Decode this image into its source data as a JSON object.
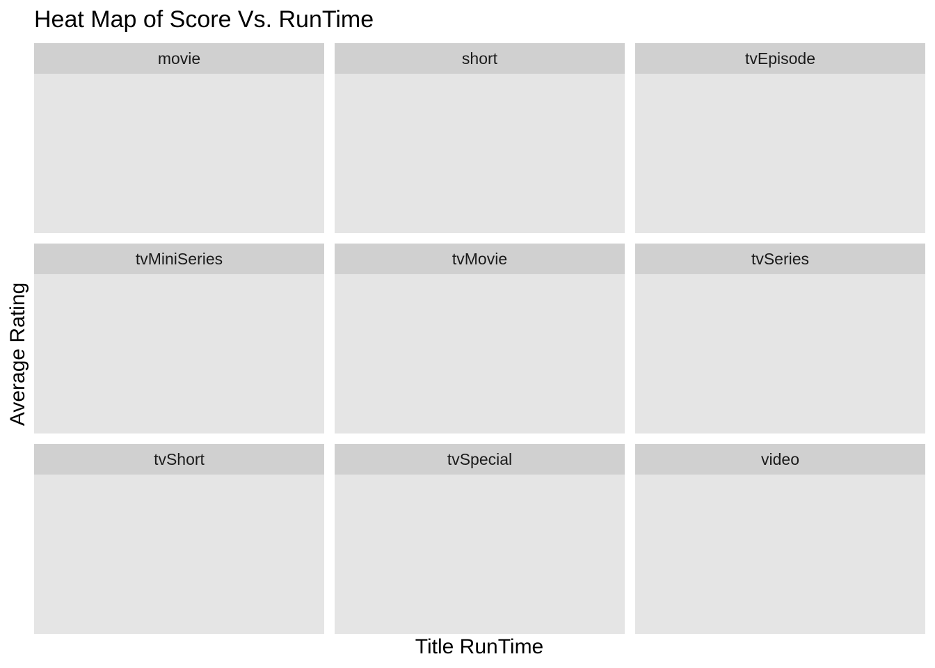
{
  "chart_data": {
    "type": "heatmap",
    "title": "Heat Map of Score Vs. RunTime",
    "xlabel": "Title RunTime",
    "ylabel": "Average Rating",
    "facets": [
      {
        "label": "movie",
        "cells": []
      },
      {
        "label": "short",
        "cells": []
      },
      {
        "label": "tvEpisode",
        "cells": []
      },
      {
        "label": "tvMiniSeries",
        "cells": []
      },
      {
        "label": "tvMovie",
        "cells": []
      },
      {
        "label": "tvSeries",
        "cells": []
      },
      {
        "label": "tvShort",
        "cells": []
      },
      {
        "label": "tvSpecial",
        "cells": []
      },
      {
        "label": "video",
        "cells": []
      }
    ],
    "grid": false,
    "legend": "none"
  },
  "colors": {
    "strip_background": "#d0d0d0",
    "panel_background": "#e5e5e5",
    "page_background": "#ffffff"
  }
}
